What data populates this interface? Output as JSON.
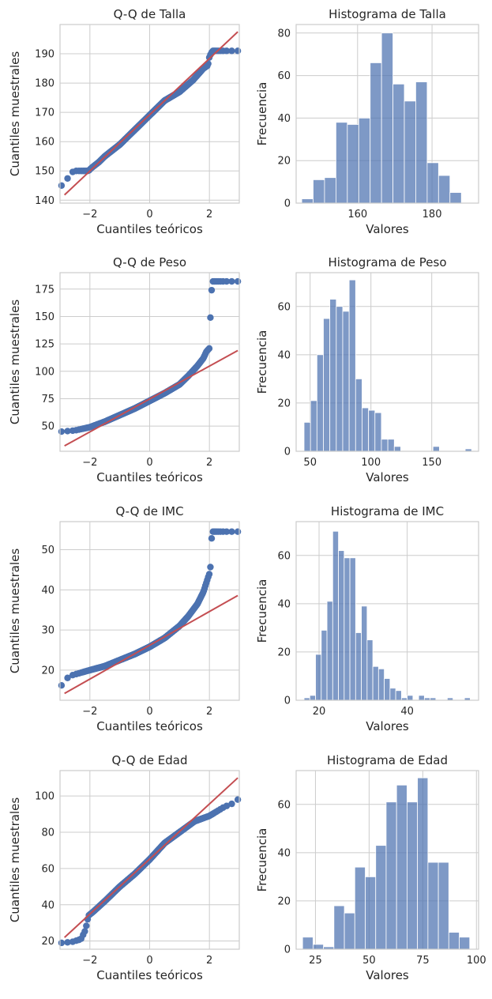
{
  "chart_data": [
    {
      "type": "scatter",
      "title": "Q-Q de Talla",
      "xlabel": "Cuantiles teóricos",
      "ylabel": "Cuantiles muestrales",
      "xlim": [
        -3.0,
        3.0
      ],
      "ylim": [
        139,
        200
      ],
      "xticks": [
        -2,
        0,
        2
      ],
      "yticks": [
        140,
        150,
        160,
        170,
        180,
        190
      ],
      "grid": true,
      "point_color": "#4c72b0",
      "line_color": "#c44e52",
      "fit_line": {
        "x": [
          -2.85,
          2.95
        ],
        "y": [
          141.8,
          197.5
        ]
      },
      "quantile_knots": [
        [
          -2.95,
          145
        ],
        [
          -2.7,
          148
        ],
        [
          -2.55,
          150
        ],
        [
          -2.05,
          150
        ],
        [
          -1.95,
          151
        ],
        [
          -1.7,
          153
        ],
        [
          -1.5,
          155
        ],
        [
          -1.0,
          159
        ],
        [
          -0.5,
          164
        ],
        [
          0.0,
          169
        ],
        [
          0.5,
          174
        ],
        [
          1.0,
          177
        ],
        [
          1.45,
          181
        ],
        [
          1.8,
          185
        ],
        [
          1.95,
          186
        ],
        [
          2.0,
          189
        ],
        [
          2.1,
          191
        ]
      ]
    },
    {
      "type": "bar",
      "title": "Histograma de Talla",
      "xlabel": "Valores",
      "ylabel": "Frecuencia",
      "xlim": [
        143.5,
        192.5
      ],
      "ylim": [
        0,
        84
      ],
      "xticks": [
        160,
        180
      ],
      "yticks": [
        0,
        20,
        40,
        60,
        80
      ],
      "grid": true,
      "bar_color": "#4c72b0",
      "bin_edges": [
        145.0,
        148.06,
        151.12,
        154.19,
        157.25,
        160.31,
        163.38,
        166.44,
        169.5,
        172.56,
        175.62,
        178.69,
        181.75,
        184.81,
        187.88,
        190.94
      ],
      "values": [
        2,
        11,
        12,
        38,
        37,
        40,
        66,
        80,
        56,
        48,
        57,
        19,
        13,
        5,
        0
      ]
    },
    {
      "type": "scatter",
      "title": "Q-Q de Peso",
      "xlabel": "Cuantiles teóricos",
      "ylabel": "Cuantiles muestrales",
      "xlim": [
        -3.0,
        3.0
      ],
      "ylim": [
        27,
        190
      ],
      "xticks": [
        -2,
        0,
        2
      ],
      "yticks": [
        50,
        75,
        100,
        125,
        150,
        175
      ],
      "grid": true,
      "point_color": "#4c72b0",
      "line_color": "#c44e52",
      "fit_line": {
        "x": [
          -2.85,
          2.95
        ],
        "y": [
          32,
          119
        ]
      },
      "quantile_knots": [
        [
          -2.95,
          45
        ],
        [
          -2.5,
          46
        ],
        [
          -2.0,
          49
        ],
        [
          -1.5,
          54
        ],
        [
          -1.0,
          60
        ],
        [
          -0.5,
          66
        ],
        [
          0.0,
          73
        ],
        [
          0.5,
          80
        ],
        [
          1.0,
          88
        ],
        [
          1.3,
          96
        ],
        [
          1.6,
          105
        ],
        [
          1.8,
          112
        ],
        [
          1.9,
          118
        ],
        [
          2.0,
          121
        ],
        [
          2.02,
          148
        ],
        [
          2.06,
          151
        ],
        [
          2.08,
          182
        ]
      ]
    },
    {
      "type": "bar",
      "title": "Histograma de Peso",
      "xlabel": "Valores",
      "ylabel": "Frecuencia",
      "xlim": [
        38.5,
        188.5
      ],
      "ylim": [
        0,
        74
      ],
      "xticks": [
        50,
        100,
        150
      ],
      "yticks": [
        0,
        20,
        40,
        60
      ],
      "grid": true,
      "bar_color": "#4c72b0",
      "bin_edges": [
        45.0,
        50.3,
        55.6,
        60.9,
        66.2,
        71.5,
        76.8,
        82.1,
        87.4,
        92.7,
        98.0,
        103.3,
        108.6,
        113.9,
        119.2,
        124.5,
        129.8,
        135.1,
        140.4,
        145.7,
        151.0,
        156.3,
        161.6,
        166.9,
        172.2,
        177.5,
        182.8
      ],
      "values": [
        12,
        21,
        40,
        55,
        63,
        60,
        58,
        71,
        30,
        18,
        17,
        16,
        5,
        5,
        2,
        0,
        0,
        0,
        0,
        0,
        2,
        0,
        0,
        0,
        0,
        1
      ]
    },
    {
      "type": "scatter",
      "title": "Q-Q de IMC",
      "xlabel": "Cuantiles teóricos",
      "ylabel": "Cuantiles muestrales",
      "xlim": [
        -3.0,
        3.0
      ],
      "ylim": [
        12.5,
        57
      ],
      "xticks": [
        -2,
        0,
        2
      ],
      "yticks": [
        20,
        30,
        40,
        50
      ],
      "grid": true,
      "point_color": "#4c72b0",
      "line_color": "#c44e52",
      "fit_line": {
        "x": [
          -2.85,
          2.95
        ],
        "y": [
          14.2,
          38.6
        ]
      },
      "quantile_knots": [
        [
          -2.95,
          16.2
        ],
        [
          -2.7,
          18.5
        ],
        [
          -2.0,
          20.0
        ],
        [
          -1.5,
          21.0
        ],
        [
          -1.0,
          22.5
        ],
        [
          -0.5,
          24.0
        ],
        [
          0.0,
          25.8
        ],
        [
          0.5,
          28.0
        ],
        [
          1.0,
          31.0
        ],
        [
          1.3,
          33.5
        ],
        [
          1.6,
          36.5
        ],
        [
          1.8,
          39.5
        ],
        [
          1.95,
          43.0
        ],
        [
          2.0,
          44.0
        ],
        [
          2.05,
          46.5
        ],
        [
          2.06,
          48.0
        ],
        [
          2.08,
          54.5
        ]
      ]
    },
    {
      "type": "bar",
      "title": "Histograma de IMC",
      "xlabel": "Valores",
      "ylabel": "Frecuencia",
      "xlim": [
        14.8,
        56.2
      ],
      "ylim": [
        0,
        74
      ],
      "xticks": [
        20,
        40
      ],
      "yticks": [
        0,
        20,
        40,
        60
      ],
      "grid": true,
      "bar_color": "#4c72b0",
      "bin_edges": [
        16.6,
        17.9,
        19.2,
        20.5,
        21.8,
        23.1,
        24.4,
        25.7,
        27.0,
        28.3,
        29.6,
        30.9,
        32.2,
        33.5,
        34.8,
        36.1,
        37.4,
        38.7,
        40.0,
        41.3,
        42.6,
        43.9,
        45.2,
        46.5,
        47.8,
        49.1,
        50.4,
        51.7,
        53.0,
        54.3
      ],
      "values": [
        1,
        2,
        19,
        29,
        41,
        70,
        62,
        59,
        59,
        28,
        39,
        25,
        14,
        13,
        9,
        5,
        4,
        1,
        2,
        0,
        2,
        1,
        1,
        0,
        0,
        1,
        0,
        0,
        1
      ]
    },
    {
      "type": "scatter",
      "title": "Q-Q de Edad",
      "xlabel": "Cuantiles teóricos",
      "ylabel": "Cuantiles muestrales",
      "xlim": [
        -3.0,
        3.0
      ],
      "ylim": [
        15.5,
        114
      ],
      "xticks": [
        -2,
        0,
        2
      ],
      "yticks": [
        20,
        40,
        60,
        80,
        100
      ],
      "grid": true,
      "point_color": "#4c72b0",
      "line_color": "#c44e52",
      "fit_line": {
        "x": [
          -2.85,
          2.95
        ],
        "y": [
          22,
          110
        ]
      },
      "quantile_knots": [
        [
          -2.95,
          19
        ],
        [
          -2.6,
          19.5
        ],
        [
          -2.3,
          21
        ],
        [
          -2.15,
          26
        ],
        [
          -2.05,
          34
        ],
        [
          -1.9,
          36
        ],
        [
          -1.5,
          42
        ],
        [
          -1.0,
          50
        ],
        [
          -0.5,
          57
        ],
        [
          0.0,
          65
        ],
        [
          0.5,
          74
        ],
        [
          1.0,
          80
        ],
        [
          1.5,
          86
        ],
        [
          2.0,
          89
        ],
        [
          2.5,
          94
        ],
        [
          2.8,
          96
        ],
        [
          2.95,
          98
        ]
      ]
    },
    {
      "type": "bar",
      "title": "Histograma de Edad",
      "xlabel": "Valores",
      "ylabel": "Frecuencia",
      "xlim": [
        16.0,
        101.0
      ],
      "ylim": [
        0,
        74
      ],
      "xticks": [
        25,
        50,
        75,
        100
      ],
      "yticks": [
        0,
        20,
        40,
        60
      ],
      "grid": true,
      "bar_color": "#4c72b0",
      "bin_edges": [
        19.0,
        23.87,
        28.73,
        33.6,
        38.47,
        43.33,
        48.2,
        53.07,
        57.93,
        62.8,
        67.67,
        72.53,
        77.4,
        82.27,
        87.13,
        92.0,
        96.87
      ],
      "values": [
        5,
        2,
        1,
        18,
        15,
        34,
        30,
        43,
        61,
        68,
        61,
        71,
        36,
        36,
        7,
        5
      ]
    }
  ]
}
